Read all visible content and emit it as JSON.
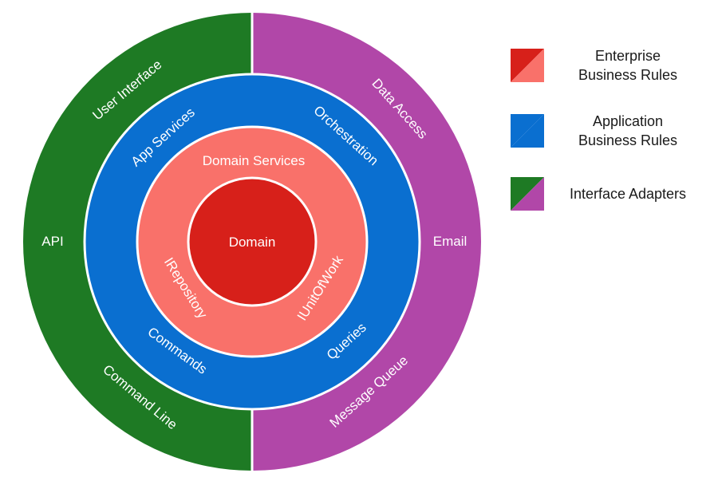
{
  "colors": {
    "domain": "#d7201a",
    "domain_services": "#f9716a",
    "application": "#0a6fd0",
    "adapters_left": "#1e7a24",
    "adapters_right": "#b147a8",
    "separator": "#ffffff"
  },
  "rings": {
    "core": {
      "label": "Domain"
    },
    "domain_services": {
      "top": "Domain Services",
      "left": "IRepository",
      "right": "IUnitOfWork"
    },
    "application": {
      "top_left": "App Services",
      "top_right": "Orchestration",
      "bottom_left": "Commands",
      "bottom_right": "Queries"
    },
    "adapters": {
      "top_left": "User Interface",
      "top_right": "Data Access",
      "left": "API",
      "right": "Email",
      "bottom_left": "Command Line",
      "bottom_right": "Message Queue"
    }
  },
  "legend": [
    {
      "label": "Enterprise\nBusiness Rules",
      "colors": [
        "#d7201a",
        "#f9716a"
      ],
      "split": true
    },
    {
      "label": "Application\nBusiness Rules",
      "colors": [
        "#0a6fd0",
        "#0a6fd0"
      ],
      "split": false
    },
    {
      "label": "Interface Adapters",
      "colors": [
        "#1e7a24",
        "#b147a8"
      ],
      "split": true
    }
  ]
}
